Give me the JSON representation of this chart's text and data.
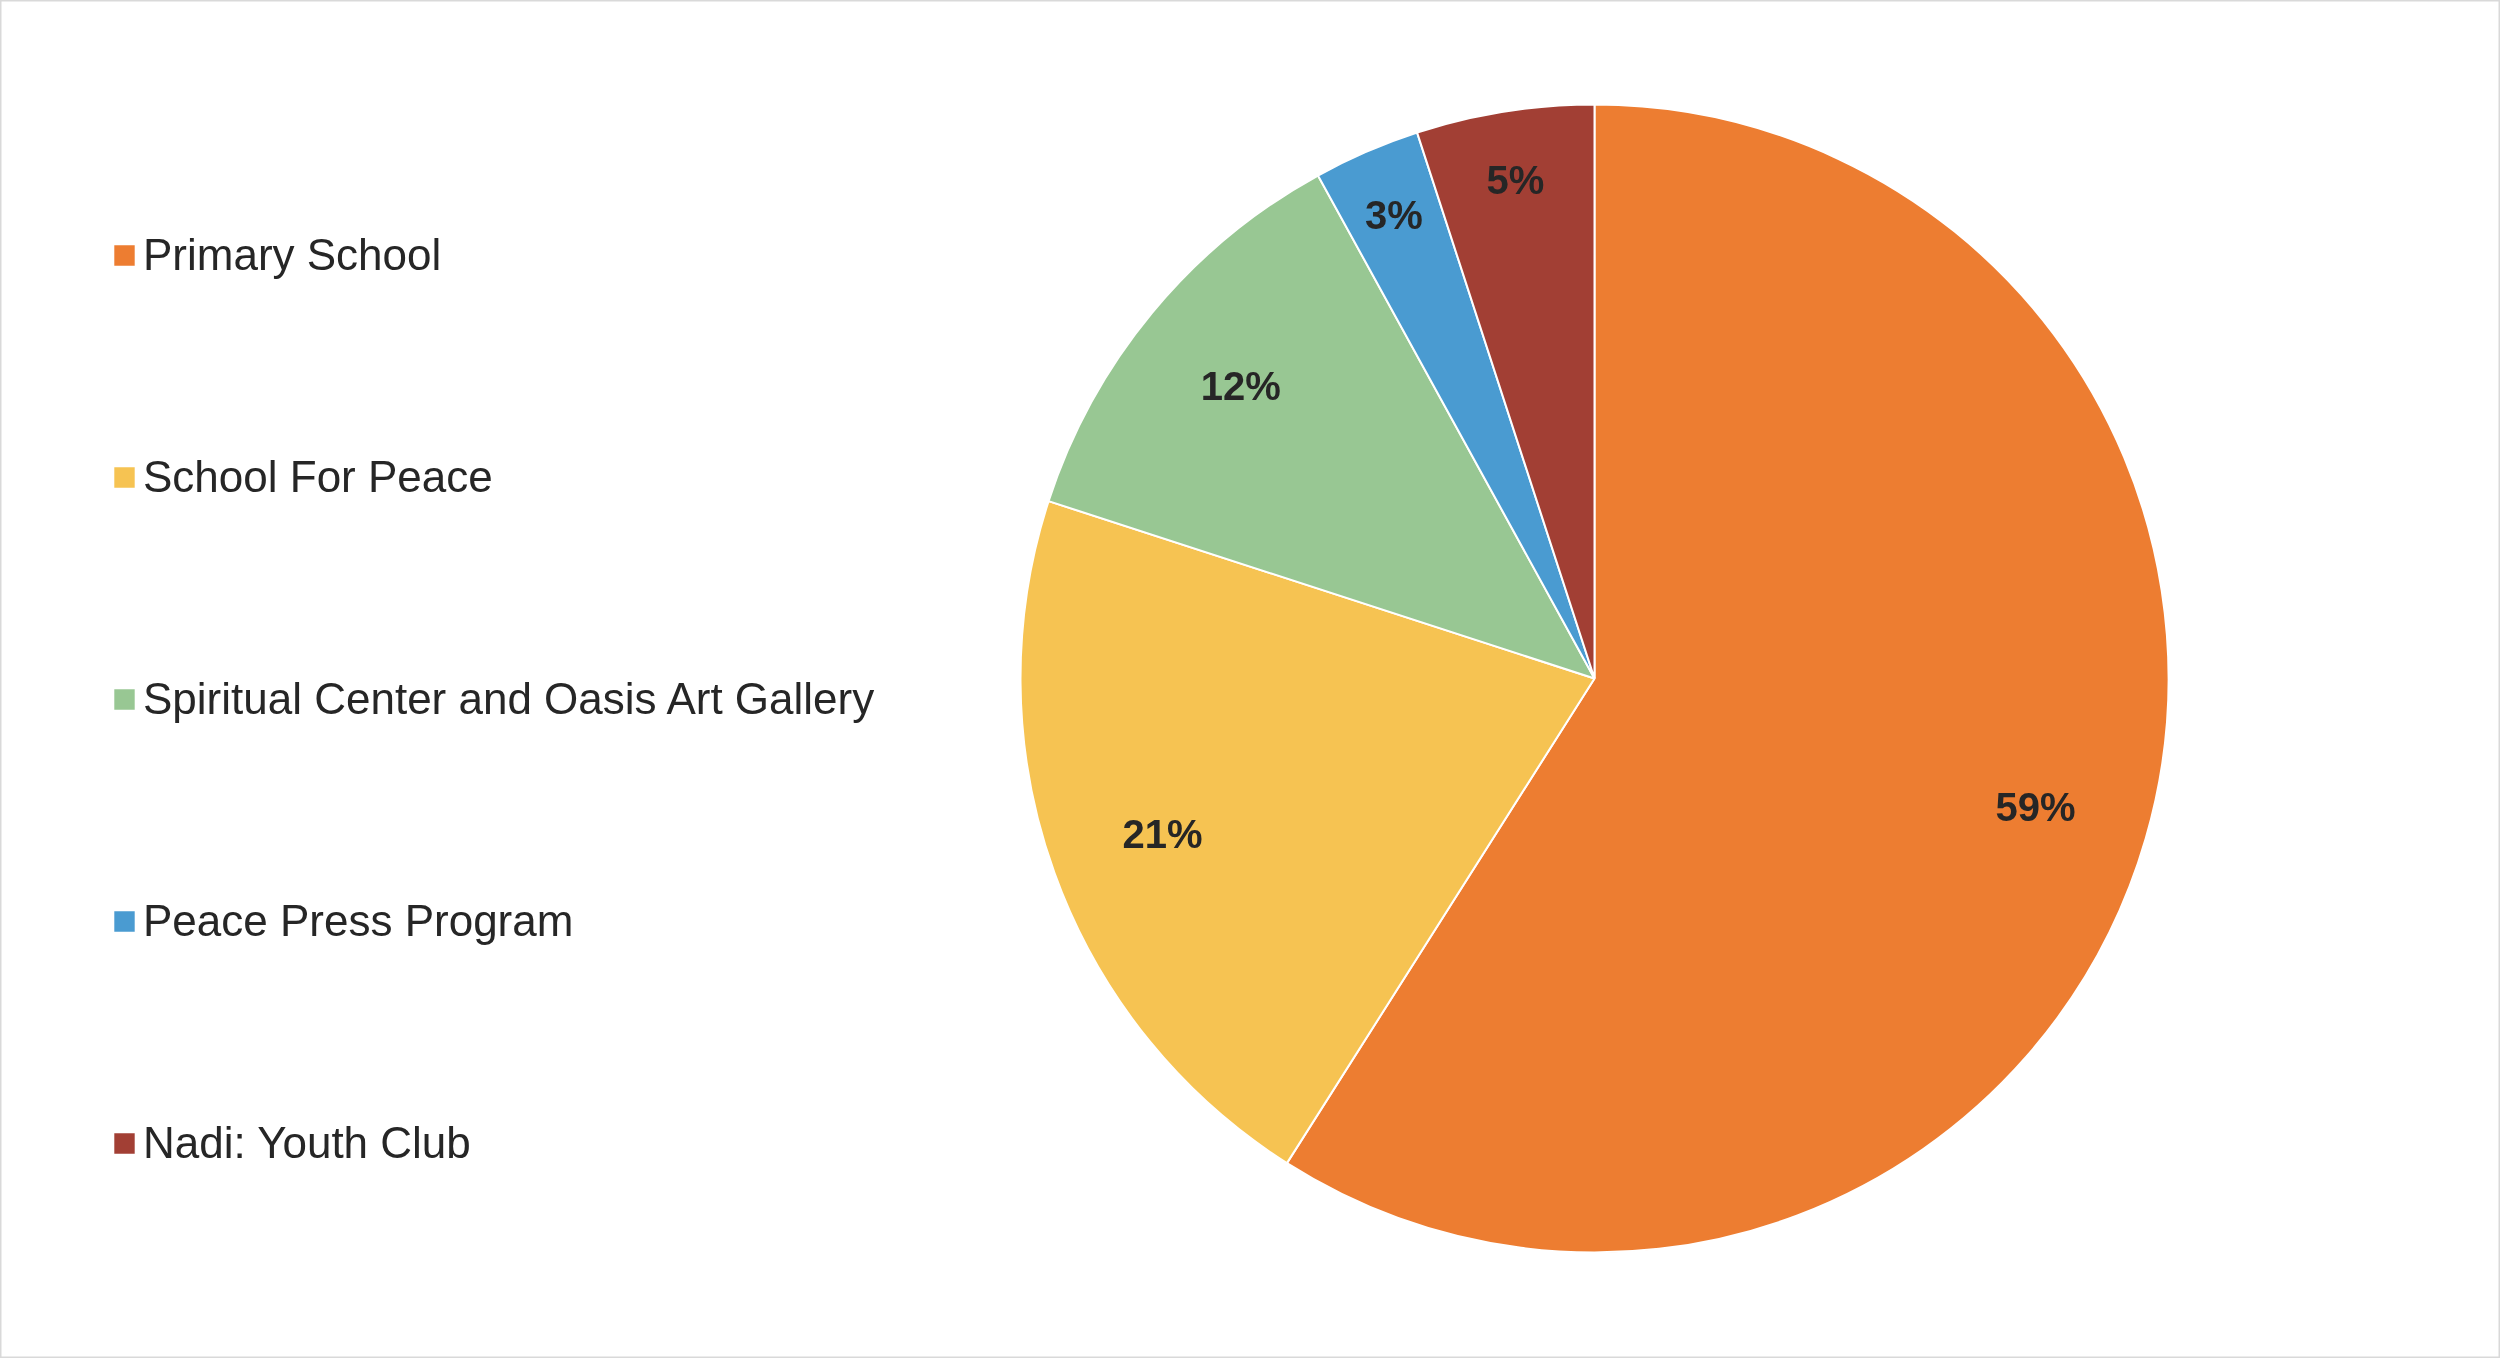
{
  "chart_data": {
    "type": "pie",
    "categories": [
      "Primary School",
      "School For Peace",
      "Spiritual Center and Oasis Art Gallery",
      "Peace Press Program",
      "Nadi: Youth Club"
    ],
    "values": [
      59,
      21,
      12,
      3,
      5
    ],
    "colors": [
      "#ed7d31",
      "#f6c352",
      "#98c793",
      "#4a9bd1",
      "#a23f34"
    ],
    "value_labels": [
      "59%",
      "21%",
      "12%",
      "3%",
      "5%"
    ],
    "legend": "left"
  }
}
